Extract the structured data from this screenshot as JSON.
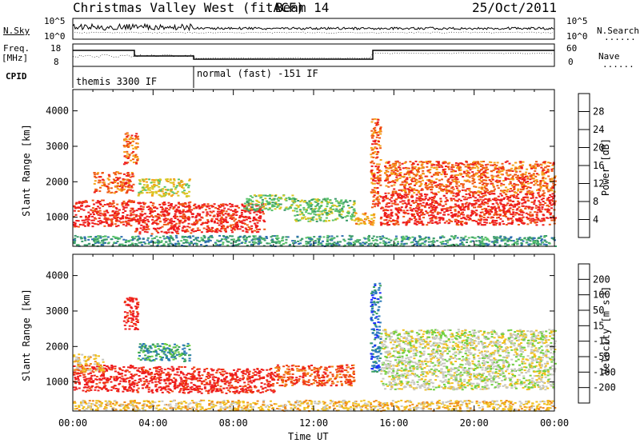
{
  "header": {
    "station": "Christmas Valley West (fitACF)",
    "beam": "Beam 14",
    "date": "25/Oct/2011"
  },
  "left_labels": {
    "nsky": "N.Sky",
    "freq": "Freq.",
    "freq_unit": "[MHz]",
    "cpid": "CPID"
  },
  "right_labels": {
    "nsearch": "N.Search",
    "nave": "Nave",
    "dots": "......"
  },
  "top_ticks": {
    "noise_left_hi": "10^5",
    "noise_left_lo": "10^0",
    "noise_right_hi": "10^5",
    "noise_right_lo": "10^0",
    "freq_hi": "18",
    "freq_lo": "8",
    "nave_hi": "60",
    "nave_lo": "0"
  },
  "cpid_segments": [
    {
      "label": "themis 3300 IF",
      "start_hour": 0,
      "end_hour": 6
    },
    {
      "label": "normal (fast) -151 IF",
      "start_hour": 6,
      "end_hour": 24
    }
  ],
  "chart_data": [
    {
      "type": "heatmap",
      "name": "power",
      "ylabel": "Slant Range [km]",
      "xlabel": "Time UT",
      "xlim_hours": [
        0,
        24
      ],
      "ylim_km": [
        180,
        4600
      ],
      "x_tick_labels": [
        "00:00",
        "04:00",
        "08:00",
        "12:00",
        "16:00",
        "20:00",
        "00:00"
      ],
      "y_tick_labels": [
        "1000",
        "2000",
        "3000",
        "4000"
      ],
      "colorbar": {
        "label": "Power [dB]",
        "ticks": [
          "4",
          "8",
          "12",
          "16",
          "20",
          "24",
          "28"
        ],
        "colors": [
          "#1a1aff",
          "#2f6fb0",
          "#3a9a6a",
          "#58c26a",
          "#d9c826",
          "#f5a21a",
          "#f05a14",
          "#ee1d1d"
        ]
      },
      "regions": [
        {
          "t0": 0.0,
          "t1": 3.0,
          "r0": 750,
          "r1": 1500,
          "level": 7
        },
        {
          "t0": 1.0,
          "t1": 3.0,
          "r0": 1700,
          "r1": 2300,
          "level": 6
        },
        {
          "t0": 2.5,
          "t1": 3.2,
          "r0": 2500,
          "r1": 3400,
          "level": 6
        },
        {
          "t0": 3.0,
          "t1": 6.0,
          "r0": 550,
          "r1": 1450,
          "level": 7
        },
        {
          "t0": 3.2,
          "t1": 5.8,
          "r0": 1600,
          "r1": 2100,
          "level": 4
        },
        {
          "t0": 6.0,
          "t1": 9.5,
          "r0": 600,
          "r1": 1400,
          "level": 7
        },
        {
          "t0": 8.5,
          "t1": 11.0,
          "r0": 1200,
          "r1": 1650,
          "level": 3
        },
        {
          "t0": 11.0,
          "t1": 14.0,
          "r0": 900,
          "r1": 1550,
          "level": 3
        },
        {
          "t0": 14.0,
          "t1": 15.0,
          "r0": 800,
          "r1": 1200,
          "level": 5
        },
        {
          "t0": 14.8,
          "t1": 15.3,
          "r0": 1300,
          "r1": 3800,
          "level": 6
        },
        {
          "t0": 15.3,
          "t1": 24.0,
          "r0": 800,
          "r1": 1700,
          "level": 7
        },
        {
          "t0": 15.5,
          "t1": 24.0,
          "r0": 1700,
          "r1": 2600,
          "level": 6
        },
        {
          "t0": 0.0,
          "t1": 24.0,
          "r0": 200,
          "r1": 500,
          "level": 2
        }
      ]
    },
    {
      "type": "heatmap",
      "name": "velocity",
      "ylabel": "Slant Range [km]",
      "xlabel": "Time UT",
      "xlim_hours": [
        0,
        24
      ],
      "ylim_km": [
        180,
        4600
      ],
      "x_tick_labels": [
        "00:00",
        "04:00",
        "08:00",
        "12:00",
        "16:00",
        "20:00",
        "00:00"
      ],
      "y_tick_labels": [
        "1000",
        "2000",
        "3000",
        "4000"
      ],
      "colorbar": {
        "label": "Velocity [m s",
        "label_exp": "-1",
        "label_end": "]",
        "ticks": [
          "200",
          "100",
          "50",
          "15",
          "-15",
          "-50",
          "-100",
          "-200"
        ],
        "colors": [
          "#1a2aff",
          "#2a7ab8",
          "#3aa060",
          "#6fd040",
          "#c8c8c0",
          "#f0c020",
          "#f08a1a",
          "#f04a14",
          "#ee1d1d"
        ]
      },
      "regions": [
        {
          "t0": 0.0,
          "t1": 3.0,
          "r0": 750,
          "r1": 1500,
          "level": 8
        },
        {
          "t0": 0.0,
          "t1": 1.5,
          "r0": 1300,
          "r1": 1800,
          "level": 5
        },
        {
          "t0": 2.5,
          "t1": 3.2,
          "r0": 2500,
          "r1": 3400,
          "level": 8
        },
        {
          "t0": 3.0,
          "t1": 6.0,
          "r0": 700,
          "r1": 1450,
          "level": 8
        },
        {
          "t0": 3.2,
          "t1": 5.8,
          "r0": 1600,
          "r1": 2100,
          "level": 2
        },
        {
          "t0": 6.0,
          "t1": 10.0,
          "r0": 700,
          "r1": 1400,
          "level": 8
        },
        {
          "t0": 10.0,
          "t1": 14.0,
          "r0": 900,
          "r1": 1500,
          "level": 7
        },
        {
          "t0": 14.8,
          "t1": 15.3,
          "r0": 1300,
          "r1": 3800,
          "level": 1
        },
        {
          "t0": 15.3,
          "t1": 24.0,
          "r0": 800,
          "r1": 2500,
          "level": 4
        },
        {
          "t0": 0.0,
          "t1": 24.0,
          "r0": 200,
          "r1": 500,
          "level": 5
        }
      ]
    }
  ]
}
